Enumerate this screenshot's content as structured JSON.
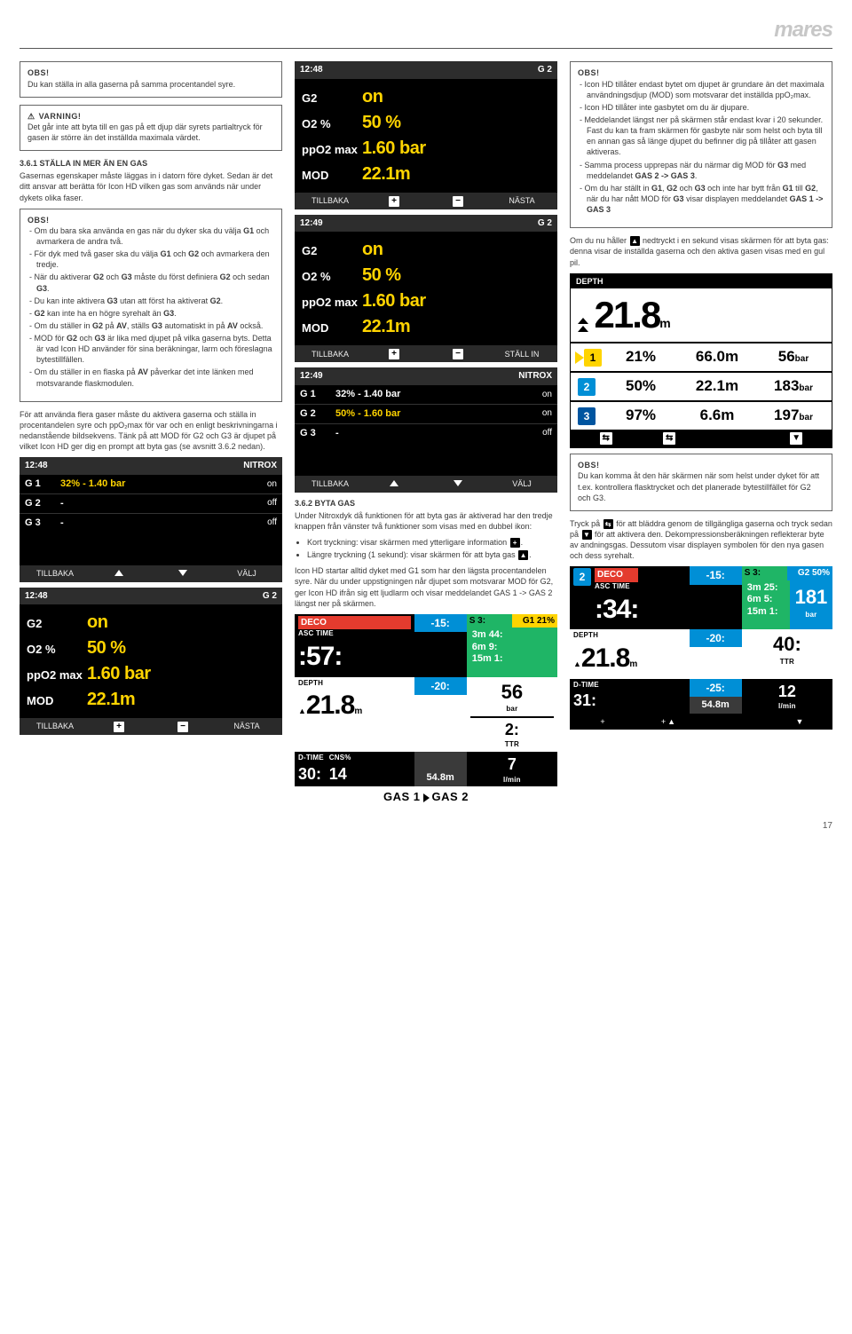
{
  "brand": "mares",
  "pageNumber": "17",
  "col1": {
    "obs1_title": "OBS!",
    "obs1_text": "Du kan ställa in alla gaserna på samma procentandel syre.",
    "warn_title": "VARNING!",
    "warn_text": "Det går inte att byta till en gas på ett djup där syrets partialtryck för gasen är större än det inställda maximala värdet.",
    "h361": "3.6.1 STÄLLA IN MER ÄN EN GAS",
    "p361a": "Gasernas egenskaper måste läggas in i datorn före dyket. Sedan är det ditt ansvar att berätta för Icon HD vilken gas som används när under dykets olika faser.",
    "obs2_title": "OBS!",
    "obs2_items": [
      "Om du bara ska använda en gas när du dyker ska du välja G1 och avmarkera de andra två.",
      "För dyk med två gaser ska du välja G1 och G2 och avmarkera den tredje.",
      "När du aktiverar G2 och G3 måste du först definiera G2 och sedan G3.",
      "Du kan inte aktivera G3 utan att först ha aktiverat G2.",
      "G2 kan inte ha en högre syrehalt än G3.",
      "Om du ställer in G2 på AV, ställs G3 automatiskt in på AV också.",
      "MOD för G2 och G3 är lika med djupet på vilka gaserna byts. Detta är vad Icon HD använder för sina beräkningar, larm och föreslagna bytestillfällen.",
      "Om du ställer in en flaska på AV påverkar det inte länken med motsvarande flaskmodulen."
    ],
    "p_between": "För att använda flera gaser måste du aktivera gaserna och ställa in procentandelen syre och ppO₂max för var och en enligt beskrivningarna i nedanstående bildsekvens. Tänk på att MOD för G2 och G3 är djupet på vilket Icon HD ger dig en prompt att byta gas (se avsnitt 3.6.2 nedan)."
  },
  "nitroxScreen1": {
    "time": "12:48",
    "mode": "NITROX",
    "rows": [
      {
        "g": "G 1",
        "mid": "32% - 1.40 bar",
        "st": "on",
        "col": "#ffd400"
      },
      {
        "g": "G 2",
        "mid": "-",
        "st": "off",
        "col": "#ffffff"
      },
      {
        "g": "G 3",
        "mid": "-",
        "st": "off",
        "col": "#ffffff"
      }
    ],
    "ftr": [
      "TILLBAKA",
      "▲",
      "▼",
      "VÄLJ"
    ]
  },
  "g2screen1": {
    "time": "12:48",
    "mode": "G 2",
    "rows": [
      {
        "k": "G2",
        "v": "on"
      },
      {
        "k": "O2 %",
        "v": "50 %"
      },
      {
        "k": "ppO2 max",
        "v": "1.60 bar"
      },
      {
        "k": "MOD",
        "v": "22.1m"
      }
    ],
    "ftr": [
      "TILLBAKA",
      "+",
      "−",
      "NÄSTA"
    ]
  },
  "g2screen2": {
    "time": "12:48",
    "mode": "G 2",
    "rows": [
      {
        "k": "G2",
        "v": "on"
      },
      {
        "k": "O2 %",
        "v": "50 %"
      },
      {
        "k": "ppO2 max",
        "v": "1.60 bar"
      },
      {
        "k": "MOD",
        "v": "22.1m"
      }
    ],
    "ftr": [
      "TILLBAKA",
      "+",
      "−",
      "NÄSTA"
    ]
  },
  "g2screen3": {
    "time": "12:49",
    "mode": "G 2",
    "rows": [
      {
        "k": "G2",
        "v": "on"
      },
      {
        "k": "O2 %",
        "v": "50 %"
      },
      {
        "k": "ppO2 max",
        "v": "1.60 bar"
      },
      {
        "k": "MOD",
        "v": "22.1m"
      }
    ],
    "ftr": [
      "TILLBAKA",
      "+",
      "−",
      "STÄLL IN"
    ]
  },
  "nitroxScreen2": {
    "time": "12:49",
    "mode": "NITROX",
    "rows": [
      {
        "g": "G 1",
        "mid": "32% - 1.40 bar",
        "st": "on",
        "col": "#ffffff"
      },
      {
        "g": "G 2",
        "mid": "50% - 1.60 bar",
        "st": "on",
        "col": "#ffd400"
      },
      {
        "g": "G 3",
        "mid": "-",
        "st": "off",
        "col": "#ffffff"
      }
    ],
    "ftr": [
      "TILLBAKA",
      "▲",
      "▼",
      "VÄLJ"
    ]
  },
  "col2": {
    "h362": "3.6.2 BYTA GAS",
    "p362a": "Under Nitroxdyk då funktionen för att byta gas är aktiverad har den tredje knappen från vänster två funktioner som visas med en dubbel ikon:",
    "bul": [
      "Kort tryckning: visar skärmen med ytterligare information ",
      "Längre tryckning (1 sekund): visar skärmen för att byta gas "
    ],
    "p362b": "Icon HD startar alltid dyket med G1 som har den lägsta procentandelen syre. När du under uppstigningen når djupet som motsvarar MOD för G2, ger Icon HD ifrån sig ett ljudlarm och visar meddelandet GAS 1 -> GAS 2 längst ner på skärmen."
  },
  "deco1": {
    "top": {
      "label": "DECO",
      "sub": "ASC TIME",
      "val": ":57:"
    },
    "col2": [
      {
        "t": "-15:"
      },
      {
        "t": "-20:"
      },
      {
        "t": ""
      }
    ],
    "s3": {
      "title": "S 3:",
      "lines": [
        "3m 44:",
        "6m 9:",
        "15m 1:"
      ],
      "right": "G1 21%",
      "rv": "56",
      "rl": "bar"
    },
    "depth": {
      "label": "DEPTH",
      "val": "21.8",
      "u": "m",
      "extra": "2:",
      "extraL": "TTR"
    },
    "dtime": {
      "label": "D-TIME",
      "v": "30:",
      "cns": "CNS%",
      "cv": "14",
      "bar": "54.8m",
      "r": "7",
      "rl": "l/min"
    },
    "gasmsg": "GAS 1 ▶ GAS 2"
  },
  "col3": {
    "obs3_title": "OBS!",
    "obs3_items": [
      "Icon HD tillåter endast bytet om djupet är grundare än det maximala användningsdjup (MOD) som motsvarar det inställda ppO₂max.",
      "Icon HD tillåter inte gasbytet om du är djupare.",
      "Meddelandet längst ner på skärmen står endast kvar i 20 sekunder. Fast du kan ta fram skärmen för gasbyte när som helst och byta till en annan gas så länge djupet du befinner dig på tillåter att gasen aktiveras.",
      "Samma process upprepas när du närmar dig MOD för G3 med meddelandet GAS 2 -> GAS 3.",
      "Om du har ställt in G1, G2 och G3 och inte har bytt från G1 till G2, när du har nått MOD för G3 visar displayen meddelandet GAS 1 -> GAS 3"
    ],
    "p_after": "Om du nu håller  nedtryckt i en sekund visas skärmen för att byta gas: denna visar de inställda gaserna och den aktiva gasen visas med en gul pil.",
    "depthSummary": {
      "hdr": "DEPTH",
      "big": "21.8",
      "u": "m",
      "rows": [
        {
          "tag": "1",
          "tagClass": "tag1",
          "a": "21%",
          "b": "66.0m",
          "c": "56",
          "cu": "bar",
          "play": true
        },
        {
          "tag": "2",
          "tagClass": "tag2",
          "a": "50%",
          "b": "22.1m",
          "c": "183",
          "cu": "bar",
          "play": false
        },
        {
          "tag": "3",
          "tagClass": "tag3",
          "a": "97%",
          "b": "6.6m",
          "c": "197",
          "cu": "bar",
          "play": false
        }
      ]
    },
    "obs4_title": "OBS!",
    "obs4_text": "Du kan komma åt den här skärmen när som helst under dyket för att t.ex. kontrollera flasktrycket och det planerade bytestillfället för G2 och G3.",
    "p_tryck": "Tryck på  för att bläddra genom de tillgängliga gaserna och tryck sedan på  för att aktivera den. Dekompressionsberäkningen reflekterar byte av andningsgas. Dessutom visar displayen symbolen för den nya gasen och dess syrehalt."
  },
  "deco2": {
    "top": {
      "label": "DECO",
      "sub": "ASC TIME",
      "val": ":34:",
      "tag": "2"
    },
    "col2": [
      {
        "t": "-15:"
      },
      {
        "t": "-20:"
      }
    ],
    "s3": {
      "title": "S 3:",
      "lines": [
        "3m 25:",
        "6m 5:",
        "15m 1:"
      ],
      "right": "G2 50%",
      "rv": "181",
      "rl": "bar"
    },
    "depth": {
      "label": "DEPTH",
      "val": "21.8",
      "u": "m",
      "extra": "40:",
      "extraL": "TTR"
    },
    "dtime": {
      "label": "D-TIME",
      "v": "31:",
      "bar": "54.8m",
      "r": "12",
      "rl": "l/min",
      "right": "-25:"
    },
    "ftr": [
      "+",
      "+▲",
      "",
      "▼"
    ]
  }
}
